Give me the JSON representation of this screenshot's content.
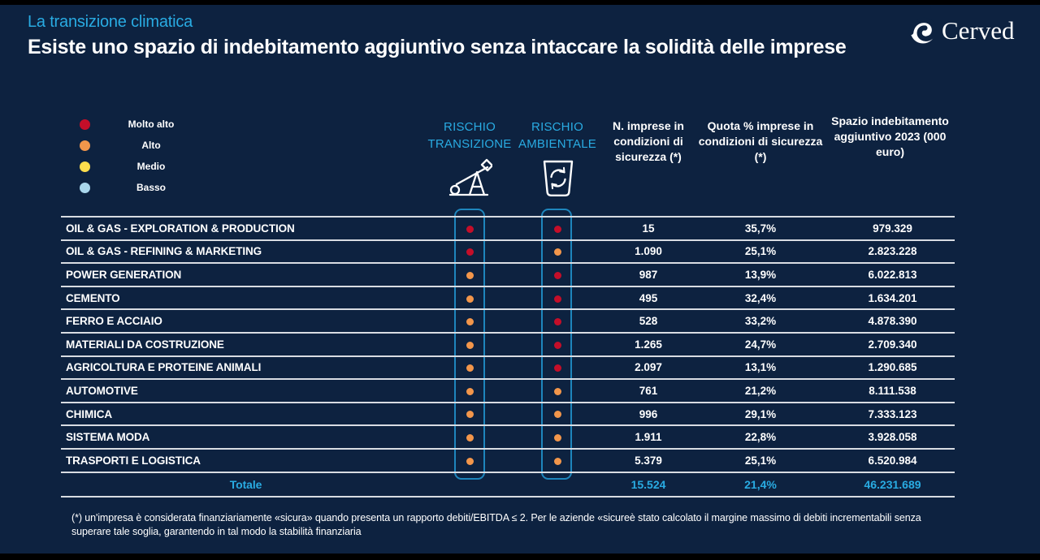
{
  "page": {
    "kicker": "La transizione climatica",
    "title": "Esiste uno spazio di indebitamento aggiuntivo senza intaccare la solidità delle imprese",
    "logo_text": "Cerved",
    "footnote": "(*) un'impresa è considerata finanziariamente «sicura» quando presenta un rapporto debiti/EBITDA ≤ 2. Per le aziende «sicureè stato calcolato il margine massimo di debiti incrementabili senza superare tale soglia, garantendo in tal modo la stabilità finanziaria"
  },
  "colors": {
    "background": "#0D2240",
    "accent": "#29ABE2",
    "box_border": "#1E86BD",
    "line": "#D8DCE2",
    "red": "#C40E29",
    "orange": "#F2964B",
    "yellow": "#FFDE4D",
    "light_blue": "#A9D6EC"
  },
  "legend": {
    "items": [
      {
        "label": "Molto alto",
        "color": "red"
      },
      {
        "label": "Alto",
        "color": "orange"
      },
      {
        "label": "Medio",
        "color": "yellow"
      },
      {
        "label": "Basso",
        "color": "light_blue"
      }
    ]
  },
  "table": {
    "headers": {
      "rischio_transizione": "RISCHIO TRANSIZIONE",
      "rischio_ambientale": "RISCHIO AMBIENTALE",
      "n_imprese": "N. imprese in condizioni di sicurezza (*)",
      "quota": "Quota % imprese in condizioni di sicurezza (*)",
      "spazio": "Spazio indebitamento aggiuntivo 2023 (000 euro)",
      "icons": [
        "oil-pump-icon",
        "recycle-bin-icon"
      ]
    },
    "rows": [
      {
        "sector": "OIL & GAS - EXPLORATION & PRODUCTION",
        "rischio_transizione": "molto_alto",
        "rischio_ambientale": "molto_alto",
        "n_imprese": "15",
        "quota": "35,7%",
        "spazio": "979.329"
      },
      {
        "sector": "OIL & GAS - REFINING & MARKETING",
        "rischio_transizione": "molto_alto",
        "rischio_ambientale": "alto",
        "n_imprese": "1.090",
        "quota": "25,1%",
        "spazio": "2.823.228"
      },
      {
        "sector": "POWER GENERATION",
        "rischio_transizione": "alto",
        "rischio_ambientale": "molto_alto",
        "n_imprese": "987",
        "quota": "13,9%",
        "spazio": "6.022.813"
      },
      {
        "sector": "CEMENTO",
        "rischio_transizione": "alto",
        "rischio_ambientale": "molto_alto",
        "n_imprese": "495",
        "quota": "32,4%",
        "spazio": "1.634.201"
      },
      {
        "sector": "FERRO E ACCIAIO",
        "rischio_transizione": "alto",
        "rischio_ambientale": "molto_alto",
        "n_imprese": "528",
        "quota": "33,2%",
        "spazio": "4.878.390"
      },
      {
        "sector": "MATERIALI DA COSTRUZIONE",
        "rischio_transizione": "alto",
        "rischio_ambientale": "molto_alto",
        "n_imprese": "1.265",
        "quota": "24,7%",
        "spazio": "2.709.340"
      },
      {
        "sector": "AGRICOLTURA E PROTEINE ANIMALI",
        "rischio_transizione": "alto",
        "rischio_ambientale": "molto_alto",
        "n_imprese": "2.097",
        "quota": "13,1%",
        "spazio": "1.290.685"
      },
      {
        "sector": "AUTOMOTIVE",
        "rischio_transizione": "alto",
        "rischio_ambientale": "alto",
        "n_imprese": "761",
        "quota": "21,2%",
        "spazio": "8.111.538"
      },
      {
        "sector": "CHIMICA",
        "rischio_transizione": "alto",
        "rischio_ambientale": "alto",
        "n_imprese": "996",
        "quota": "29,1%",
        "spazio": "7.333.123"
      },
      {
        "sector": "SISTEMA MODA",
        "rischio_transizione": "alto",
        "rischio_ambientale": "alto",
        "n_imprese": "1.911",
        "quota": "22,8%",
        "spazio": "3.928.058"
      },
      {
        "sector": "TRASPORTI E LOGISTICA",
        "rischio_transizione": "alto",
        "rischio_ambientale": "alto",
        "n_imprese": "5.379",
        "quota": "25,1%",
        "spazio": "6.520.984"
      }
    ],
    "total": {
      "label": "Totale",
      "n_imprese": "15.524",
      "quota": "21,4%",
      "spazio": "46.231.689"
    }
  }
}
